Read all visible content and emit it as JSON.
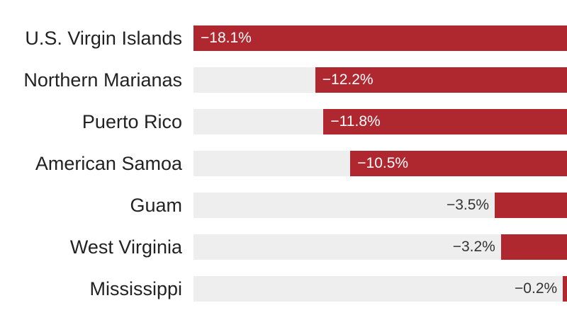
{
  "chart_data": {
    "type": "bar",
    "orientation": "horizontal",
    "categories": [
      "U.S. Virgin Islands",
      "Northern Marianas",
      "Puerto Rico",
      "American Samoa",
      "Guam",
      "West Virginia",
      "Mississippi"
    ],
    "values": [
      -18.1,
      -12.2,
      -11.8,
      -10.5,
      -3.5,
      -3.2,
      -0.2
    ],
    "labels": [
      "−18.1%",
      "−12.2%",
      "−11.8%",
      "−10.5%",
      "−3.5%",
      "−3.2%",
      "−0.2%"
    ],
    "xlim": [
      -18.1,
      0
    ],
    "bar_color": "#b0282f",
    "track_color": "#eeeeee"
  }
}
